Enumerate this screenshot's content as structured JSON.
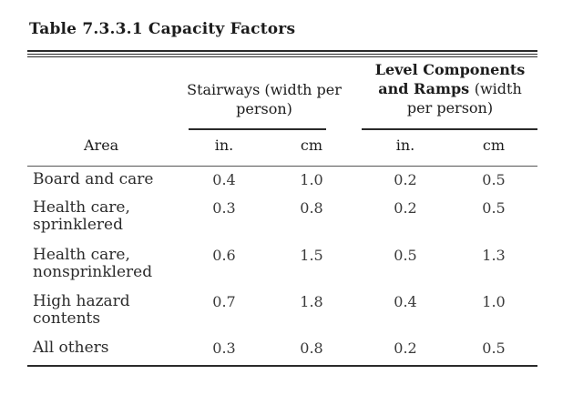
{
  "table": {
    "caption": "Table 7.3.3.1 Capacity Factors",
    "group_headers": {
      "stairways": "Stairways (width per person)",
      "level_line1": "Level Components",
      "level_line2": "and Ramps",
      "level_line2b": "(width",
      "level_line3": "per person)"
    },
    "area_header": "Area",
    "units": [
      "in.",
      "cm",
      "in.",
      "cm"
    ],
    "rows": [
      {
        "area_line1": "Board and care",
        "area_line2": "",
        "values": [
          "0.4",
          "1.0",
          "0.2",
          "0.5"
        ]
      },
      {
        "area_line1": "Health care,",
        "area_line2": "sprinklered",
        "values": [
          "0.3",
          "0.8",
          "0.2",
          "0.5"
        ]
      },
      {
        "area_line1": "Health care,",
        "area_line2": "nonsprinklered",
        "values": [
          "0.6",
          "1.5",
          "0.5",
          "1.3"
        ]
      },
      {
        "area_line1": "High hazard",
        "area_line2": "contents",
        "values": [
          "0.7",
          "1.8",
          "0.4",
          "1.0"
        ]
      },
      {
        "area_line1": "All others",
        "area_line2": "",
        "values": [
          "0.3",
          "0.8",
          "0.2",
          "0.5"
        ]
      }
    ]
  }
}
